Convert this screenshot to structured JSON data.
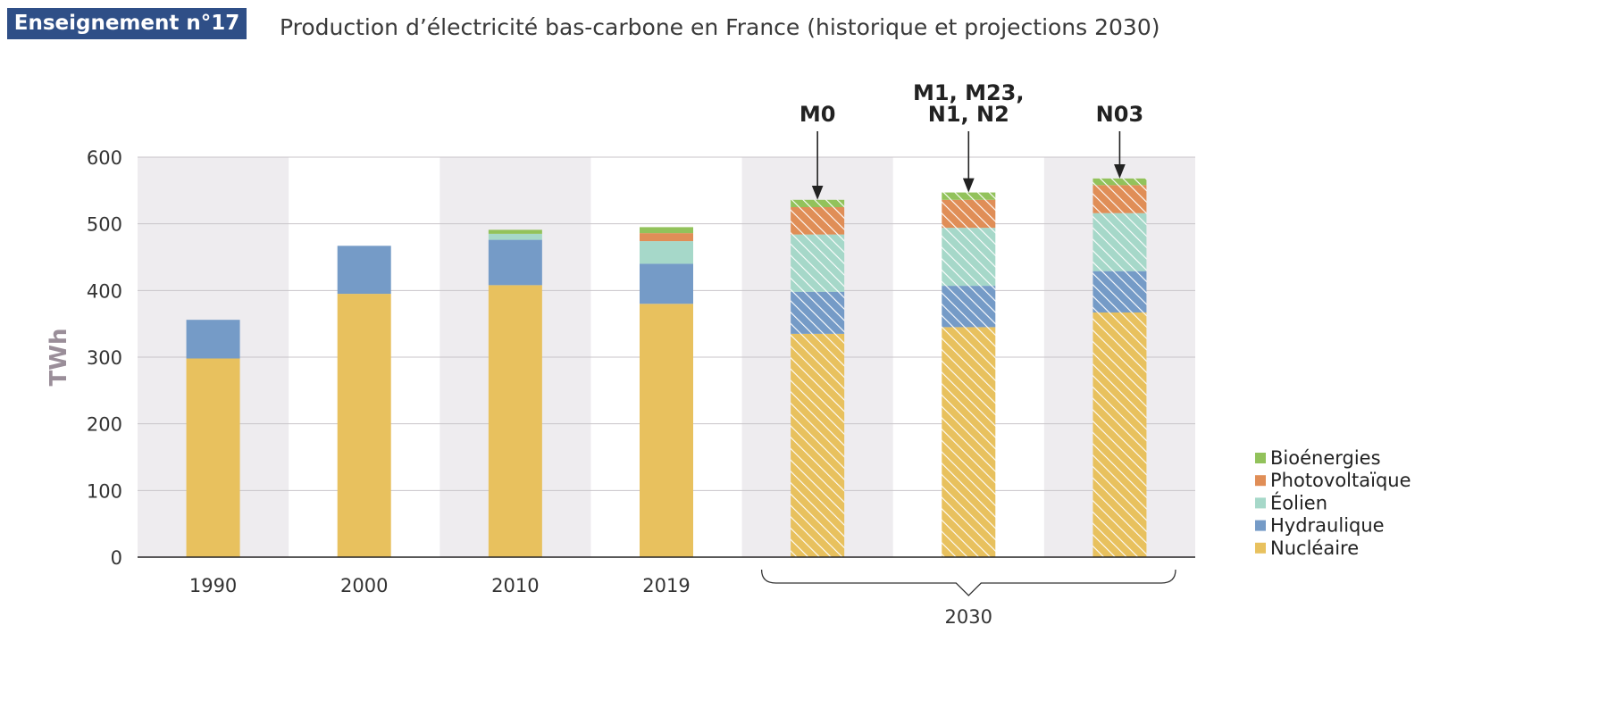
{
  "badge": "Enseignement n°17",
  "title": "Production d’électricité bas-carbone en France (historique et projections 2030)",
  "chart_data": {
    "type": "bar",
    "stacked": true,
    "title": "Production d’électricité bas-carbone en France (historique et projections 2030)",
    "xlabel": "",
    "ylabel": "TWh",
    "ylim": [
      0,
      600
    ],
    "yticks": [
      0,
      100,
      200,
      300,
      400,
      500,
      600
    ],
    "grid": true,
    "legend_position": "bottom-right",
    "categories": [
      "1990",
      "2000",
      "2010",
      "2019",
      "M0",
      "M1, M23, N1, N2",
      "N03"
    ],
    "category_labels": [
      "1990",
      "2000",
      "2010",
      "2019",
      "",
      "",
      ""
    ],
    "projected": [
      false,
      false,
      false,
      false,
      true,
      true,
      true
    ],
    "group_label": "2030",
    "annotations": [
      "M0",
      "M1, M23,",
      "N1, N2",
      "N03"
    ],
    "series": [
      {
        "name": "Nucléaire",
        "color": "#e8c15e",
        "values": [
          298,
          395,
          408,
          380,
          335,
          345,
          367
        ]
      },
      {
        "name": "Hydraulique",
        "color": "#759bc7",
        "values": [
          58,
          72,
          68,
          60,
          63,
          62,
          62
        ]
      },
      {
        "name": "Éolien",
        "color": "#a6d8c9",
        "values": [
          0,
          0,
          9,
          34,
          86,
          87,
          87
        ]
      },
      {
        "name": "Photovoltaïque",
        "color": "#e08e57",
        "values": [
          0,
          0,
          0,
          12,
          41,
          42,
          42
        ]
      },
      {
        "name": "Bioénergies",
        "color": "#92c25b",
        "values": [
          0,
          0,
          6,
          9,
          11,
          11,
          10
        ]
      }
    ]
  }
}
